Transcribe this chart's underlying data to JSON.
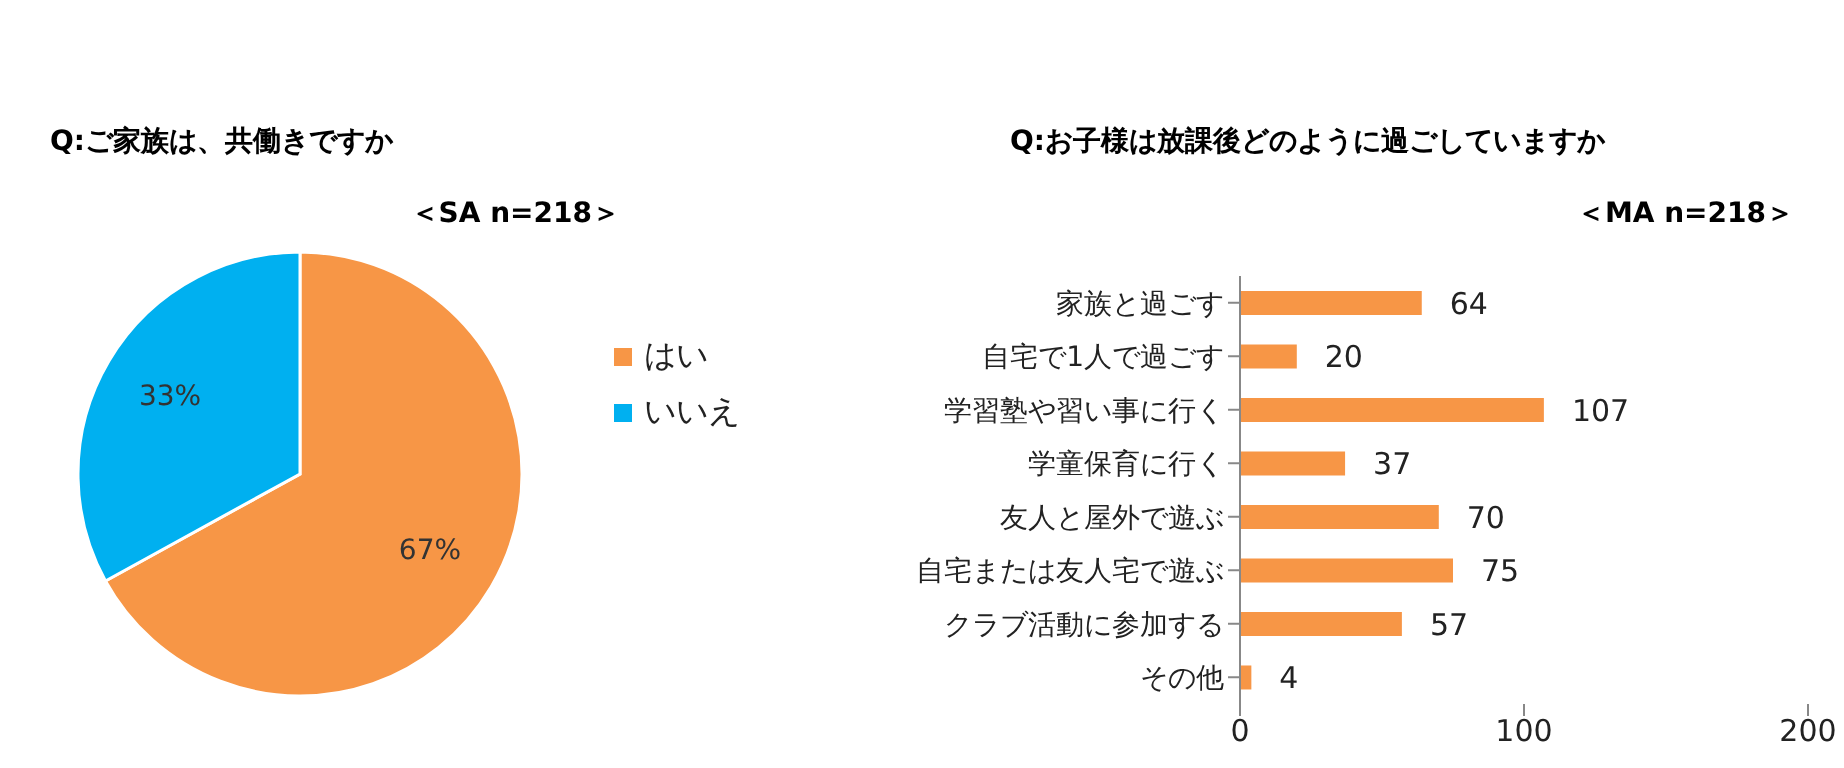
{
  "chart_data": [
    {
      "type": "pie",
      "title": "Q:ご家族は、共働きですか",
      "subtitle": "＜SA n=218＞",
      "categories": [
        "はい",
        "いいえ"
      ],
      "values": [
        67,
        33
      ],
      "colors": [
        "#f79646",
        "#00b0f0"
      ],
      "value_labels": [
        "67%",
        "33%"
      ],
      "legend": "right"
    },
    {
      "type": "bar",
      "orientation": "horizontal",
      "title": "Q:お子様は放課後どのように過ごしていますか",
      "subtitle": "＜MA n=218＞",
      "categories": [
        "家族と過ごす",
        "自宅で1人で過ごす",
        "学習塾や習い事に行く",
        "学童保育に行く",
        "友人と屋外で遊ぶ",
        "自宅または友人宅で遊ぶ",
        "クラブ活動に参加する",
        "その他"
      ],
      "values": [
        64,
        20,
        107,
        37,
        70,
        75,
        57,
        4
      ],
      "color": "#f79646",
      "xlim": [
        0,
        200
      ],
      "xticks": [
        0,
        100,
        200
      ],
      "data_labels": true
    }
  ]
}
